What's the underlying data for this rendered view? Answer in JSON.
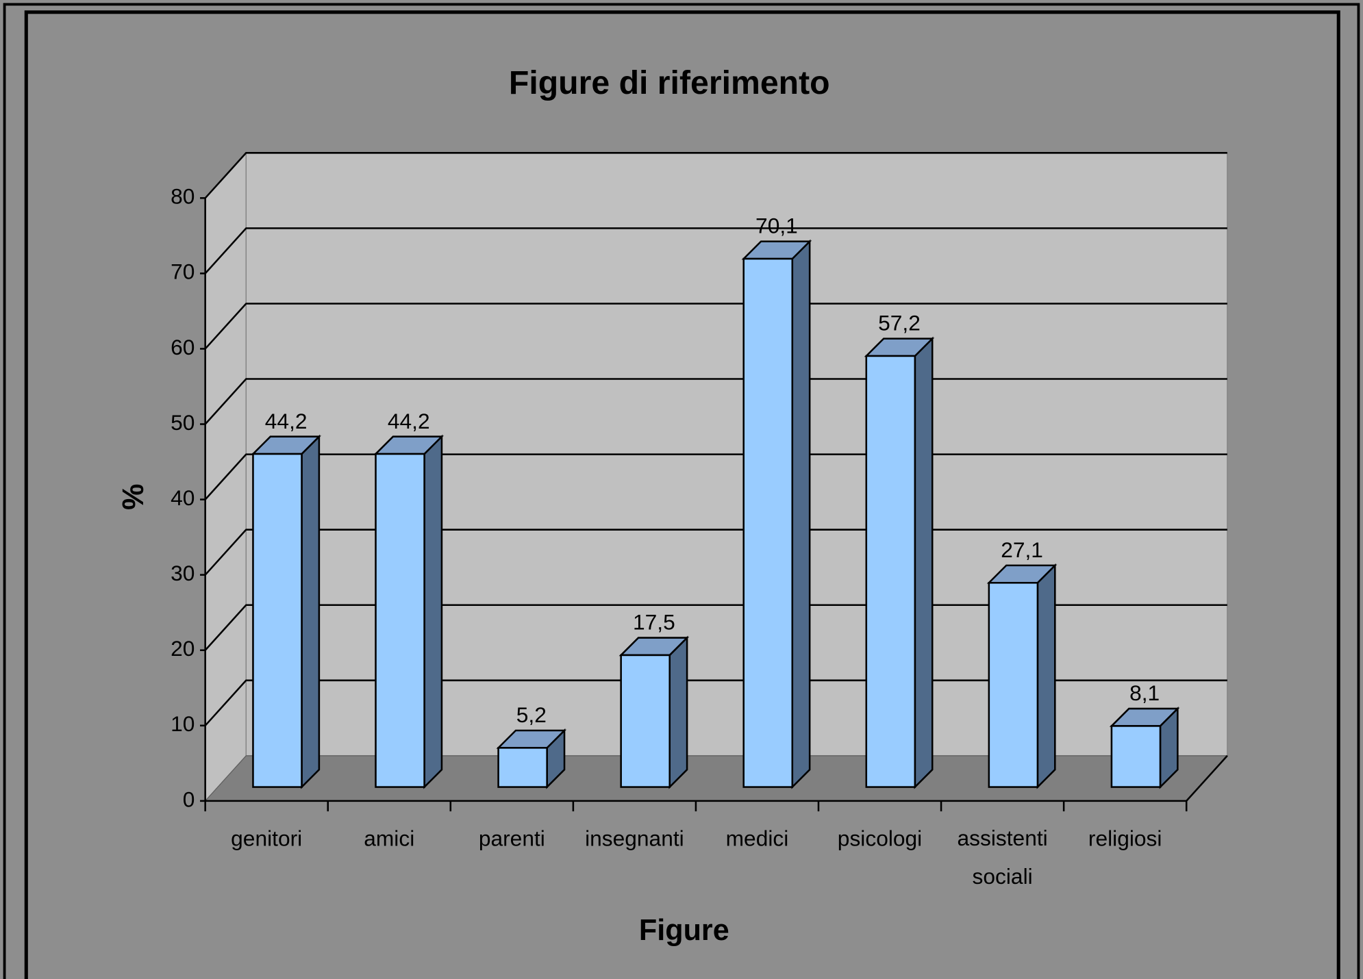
{
  "chart_data": {
    "type": "bar3d",
    "title": "Figure di riferimento",
    "x_label": "Figure",
    "y_label": "%",
    "categories": [
      "genitori",
      "amici",
      "parenti",
      "insegnanti",
      "medici",
      "psicologi",
      "assistenti sociali",
      "religiosi"
    ],
    "values": [
      44.2,
      44.2,
      5.2,
      17.5,
      70.1,
      57.2,
      27.1,
      8.1
    ],
    "value_labels": [
      "44,2",
      "44,2",
      "5,2",
      "17,5",
      "70,1",
      "57,2",
      "27,1",
      "8,1"
    ],
    "color": "#99ccff",
    "ylim": [
      0,
      80
    ],
    "yticks": [
      0,
      10,
      20,
      30,
      40,
      50,
      60,
      70,
      80
    ],
    "grid": true
  }
}
